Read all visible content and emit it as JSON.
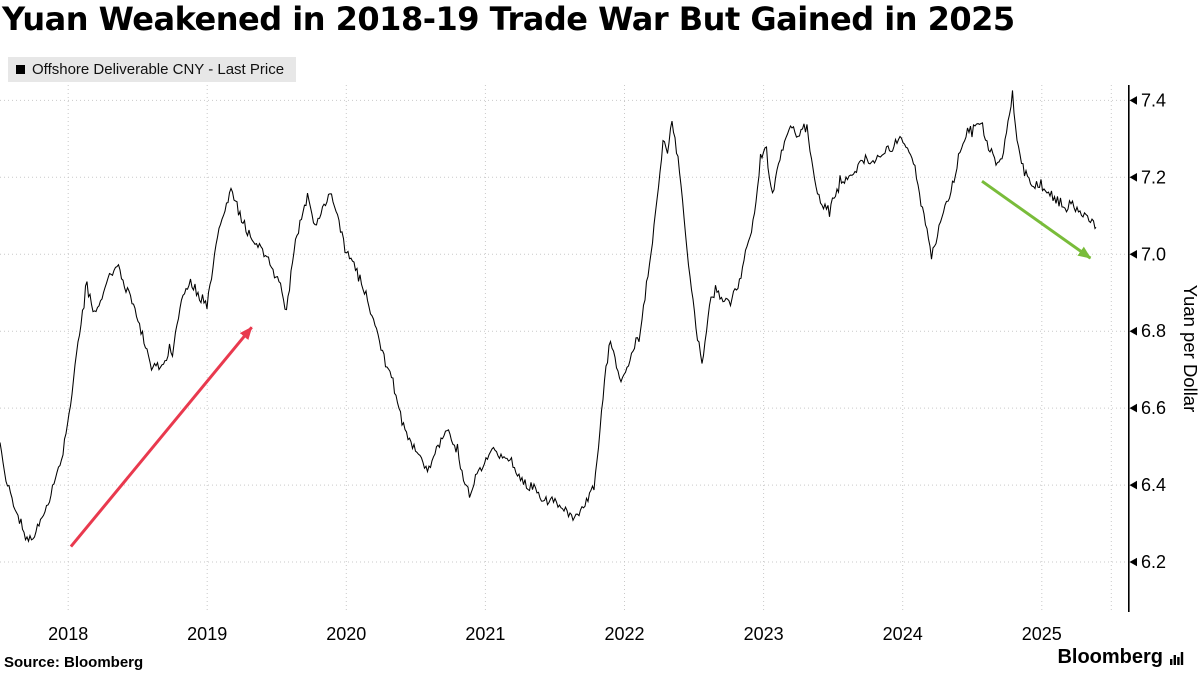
{
  "title": "Yuan Weakened in 2018-19 Trade War But Gained in 2025",
  "legend": {
    "label": "Offshore Deliverable CNY - Last Price",
    "swatch_color": "#000000"
  },
  "source": "Source: Bloomberg",
  "branding": {
    "name": "Bloomberg"
  },
  "chart_data": {
    "type": "line",
    "title": "Yuan Weakened in 2018-19 Trade War But Gained in 2025",
    "xlabel": "",
    "ylabel": "Yuan per Dollar",
    "xlim": [
      2018.01,
      2026.12
    ],
    "ylim": [
      6.07,
      7.44
    ],
    "grid": true,
    "legend_position": "top-left",
    "y_ticks": [
      6.2,
      6.4,
      6.6,
      6.8,
      7.0,
      7.2,
      7.4
    ],
    "x_ticks": [
      {
        "label": "2018",
        "pos": 2018.5
      },
      {
        "label": "2019",
        "pos": 2019.5
      },
      {
        "label": "2020",
        "pos": 2020.5
      },
      {
        "label": "2021",
        "pos": 2021.5
      },
      {
        "label": "2022",
        "pos": 2022.5
      },
      {
        "label": "2023",
        "pos": 2023.5
      },
      {
        "label": "2024",
        "pos": 2024.5
      },
      {
        "label": "2025",
        "pos": 2025.5
      },
      {
        "label": "",
        "pos": 2026.0
      }
    ],
    "series": [
      {
        "name": "Offshore Deliverable CNY - Last Price",
        "color": "#000000",
        "points": [
          [
            2018.01,
            6.5
          ],
          [
            2018.05,
            6.42
          ],
          [
            2018.12,
            6.34
          ],
          [
            2018.21,
            6.25
          ],
          [
            2018.29,
            6.29
          ],
          [
            2018.38,
            6.38
          ],
          [
            2018.46,
            6.47
          ],
          [
            2018.52,
            6.62
          ],
          [
            2018.58,
            6.79
          ],
          [
            2018.63,
            6.93
          ],
          [
            2018.68,
            6.85
          ],
          [
            2018.74,
            6.88
          ],
          [
            2018.79,
            6.94
          ],
          [
            2018.85,
            6.97
          ],
          [
            2018.9,
            6.93
          ],
          [
            2018.96,
            6.88
          ],
          [
            2019.04,
            6.78
          ],
          [
            2019.1,
            6.71
          ],
          [
            2019.17,
            6.71
          ],
          [
            2019.25,
            6.74
          ],
          [
            2019.32,
            6.89
          ],
          [
            2019.38,
            6.93
          ],
          [
            2019.44,
            6.89
          ],
          [
            2019.5,
            6.87
          ],
          [
            2019.56,
            7.02
          ],
          [
            2019.61,
            7.1
          ],
          [
            2019.67,
            7.17
          ],
          [
            2019.71,
            7.13
          ],
          [
            2019.77,
            7.07
          ],
          [
            2019.83,
            7.03
          ],
          [
            2019.89,
            7.02
          ],
          [
            2019.96,
            6.97
          ],
          [
            2020.03,
            6.91
          ],
          [
            2020.07,
            6.86
          ],
          [
            2020.12,
            6.99
          ],
          [
            2020.17,
            7.08
          ],
          [
            2020.22,
            7.15
          ],
          [
            2020.28,
            7.07
          ],
          [
            2020.34,
            7.13
          ],
          [
            2020.39,
            7.16
          ],
          [
            2020.45,
            7.08
          ],
          [
            2020.51,
            7.0
          ],
          [
            2020.56,
            6.97
          ],
          [
            2020.62,
            6.92
          ],
          [
            2020.67,
            6.86
          ],
          [
            2020.72,
            6.8
          ],
          [
            2020.78,
            6.72
          ],
          [
            2020.84,
            6.66
          ],
          [
            2020.89,
            6.58
          ],
          [
            2020.95,
            6.52
          ],
          [
            2021.03,
            6.47
          ],
          [
            2021.09,
            6.44
          ],
          [
            2021.16,
            6.5
          ],
          [
            2021.22,
            6.55
          ],
          [
            2021.28,
            6.5
          ],
          [
            2021.34,
            6.42
          ],
          [
            2021.39,
            6.37
          ],
          [
            2021.45,
            6.44
          ],
          [
            2021.51,
            6.47
          ],
          [
            2021.57,
            6.49
          ],
          [
            2021.62,
            6.47
          ],
          [
            2021.68,
            6.46
          ],
          [
            2021.73,
            6.43
          ],
          [
            2021.79,
            6.4
          ],
          [
            2021.84,
            6.39
          ],
          [
            2021.9,
            6.37
          ],
          [
            2021.96,
            6.36
          ],
          [
            2022.04,
            6.35
          ],
          [
            2022.1,
            6.33
          ],
          [
            2022.16,
            6.31
          ],
          [
            2022.22,
            6.36
          ],
          [
            2022.28,
            6.4
          ],
          [
            2022.32,
            6.53
          ],
          [
            2022.36,
            6.68
          ],
          [
            2022.4,
            6.79
          ],
          [
            2022.44,
            6.71
          ],
          [
            2022.48,
            6.67
          ],
          [
            2022.52,
            6.71
          ],
          [
            2022.56,
            6.75
          ],
          [
            2022.61,
            6.79
          ],
          [
            2022.65,
            6.9
          ],
          [
            2022.7,
            7.03
          ],
          [
            2022.74,
            7.16
          ],
          [
            2022.78,
            7.3
          ],
          [
            2022.81,
            7.25
          ],
          [
            2022.84,
            7.35
          ],
          [
            2022.88,
            7.26
          ],
          [
            2022.92,
            7.13
          ],
          [
            2022.96,
            6.98
          ],
          [
            2023.02,
            6.79
          ],
          [
            2023.06,
            6.71
          ],
          [
            2023.11,
            6.86
          ],
          [
            2023.16,
            6.92
          ],
          [
            2023.21,
            6.87
          ],
          [
            2023.27,
            6.88
          ],
          [
            2023.33,
            6.93
          ],
          [
            2023.38,
            7.02
          ],
          [
            2023.43,
            7.09
          ],
          [
            2023.48,
            7.24
          ],
          [
            2023.52,
            7.27
          ],
          [
            2023.56,
            7.15
          ],
          [
            2023.61,
            7.24
          ],
          [
            2023.65,
            7.29
          ],
          [
            2023.7,
            7.33
          ],
          [
            2023.74,
            7.3
          ],
          [
            2023.79,
            7.34
          ],
          [
            2023.83,
            7.29
          ],
          [
            2023.88,
            7.16
          ],
          [
            2023.92,
            7.13
          ],
          [
            2023.97,
            7.12
          ],
          [
            2024.04,
            7.17
          ],
          [
            2024.1,
            7.2
          ],
          [
            2024.17,
            7.22
          ],
          [
            2024.23,
            7.25
          ],
          [
            2024.29,
            7.24
          ],
          [
            2024.35,
            7.26
          ],
          [
            2024.41,
            7.27
          ],
          [
            2024.47,
            7.3
          ],
          [
            2024.53,
            7.28
          ],
          [
            2024.58,
            7.24
          ],
          [
            2024.62,
            7.16
          ],
          [
            2024.66,
            7.09
          ],
          [
            2024.7,
            6.99
          ],
          [
            2024.74,
            7.03
          ],
          [
            2024.78,
            7.1
          ],
          [
            2024.83,
            7.14
          ],
          [
            2024.88,
            7.21
          ],
          [
            2024.92,
            7.28
          ],
          [
            2024.96,
            7.32
          ],
          [
            2025.02,
            7.33
          ],
          [
            2025.06,
            7.35
          ],
          [
            2025.1,
            7.29
          ],
          [
            2025.14,
            7.26
          ],
          [
            2025.18,
            7.23
          ],
          [
            2025.22,
            7.26
          ],
          [
            2025.26,
            7.34
          ],
          [
            2025.29,
            7.42
          ],
          [
            2025.32,
            7.29
          ],
          [
            2025.36,
            7.23
          ],
          [
            2025.4,
            7.2
          ],
          [
            2025.44,
            7.17
          ],
          [
            2025.49,
            7.18
          ],
          [
            2025.53,
            7.16
          ],
          [
            2025.58,
            7.15
          ],
          [
            2025.62,
            7.14
          ],
          [
            2025.66,
            7.12
          ],
          [
            2025.7,
            7.13
          ],
          [
            2025.74,
            7.12
          ],
          [
            2025.78,
            7.11
          ],
          [
            2025.82,
            7.1
          ],
          [
            2025.86,
            7.09
          ],
          [
            2025.89,
            7.07
          ]
        ]
      }
    ],
    "annotations": [
      {
        "type": "arrow",
        "name": "weakening-trend-arrow",
        "color": "#e9394e",
        "from": [
          2018.52,
          6.24
        ],
        "to": [
          2019.82,
          6.81
        ]
      },
      {
        "type": "arrow",
        "name": "gaining-trend-arrow",
        "color": "#79bc3a",
        "from": [
          2025.07,
          7.19
        ],
        "to": [
          2025.85,
          6.99
        ]
      }
    ]
  }
}
